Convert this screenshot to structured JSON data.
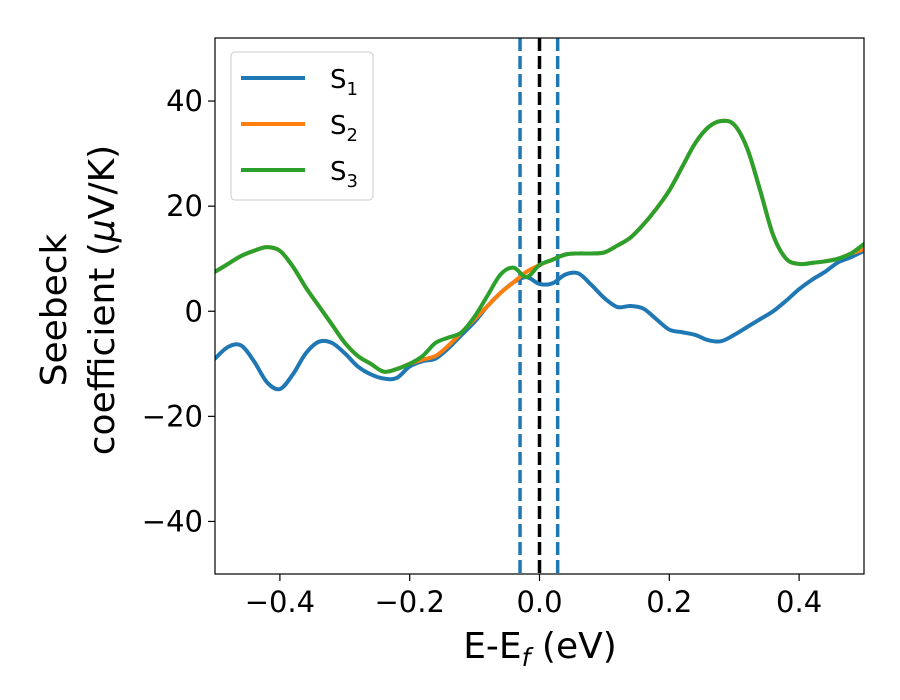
{
  "chart_data": {
    "type": "line",
    "xlabel": {
      "main": "E-E",
      "sub": "f",
      "rest": " (eV)"
    },
    "ylabel": {
      "line1": "Seebeck",
      "line2_prefix": "coefficient  (",
      "mu": "μ",
      "line2_suffix": "V/K)"
    },
    "xlim": [
      -0.5,
      0.5
    ],
    "ylim": [
      -50,
      52
    ],
    "xticks": [
      -0.4,
      -0.2,
      0.0,
      0.2,
      0.4
    ],
    "xtick_labels": [
      "−0.4",
      "−0.2",
      "0.0",
      "0.2",
      "0.4"
    ],
    "yticks": [
      -40,
      -20,
      0,
      20,
      40
    ],
    "ytick_labels": [
      "−40",
      "−20",
      "0",
      "20",
      "40"
    ],
    "grid": false,
    "legend_position": "top-left",
    "vlines": [
      {
        "x": -0.03,
        "style": "dashed",
        "color": "#1f77b4"
      },
      {
        "x": 0.0,
        "style": "dashed",
        "color": "#000000"
      },
      {
        "x": 0.028,
        "style": "dashed",
        "color": "#1f77b4"
      }
    ],
    "series": [
      {
        "name": "S",
        "sub": "1",
        "color": "#1f77b4",
        "x": [
          -0.5,
          -0.48,
          -0.46,
          -0.44,
          -0.42,
          -0.4,
          -0.38,
          -0.36,
          -0.34,
          -0.32,
          -0.3,
          -0.28,
          -0.26,
          -0.24,
          -0.22,
          -0.2,
          -0.18,
          -0.16,
          -0.14,
          -0.12,
          -0.1,
          -0.08,
          -0.06,
          -0.04,
          -0.02,
          0.0,
          0.02,
          0.04,
          0.06,
          0.08,
          0.1,
          0.12,
          0.14,
          0.16,
          0.18,
          0.2,
          0.22,
          0.24,
          0.26,
          0.28,
          0.3,
          0.32,
          0.34,
          0.36,
          0.38,
          0.4,
          0.42,
          0.44,
          0.46,
          0.48,
          0.5
        ],
        "y": [
          -9,
          -6.8,
          -6.5,
          -9.5,
          -13.5,
          -14.8,
          -12,
          -8,
          -5.8,
          -6,
          -8,
          -10.5,
          -12,
          -12.8,
          -12.7,
          -10.5,
          -9.5,
          -9,
          -7,
          -4.5,
          -2,
          1,
          3.5,
          5.5,
          6.5,
          5.2,
          5.3,
          7,
          7.2,
          5,
          2.5,
          0.8,
          1,
          0.5,
          -1.5,
          -3.5,
          -4,
          -4.5,
          -5.5,
          -5.7,
          -4.5,
          -3,
          -1.5,
          0,
          2,
          4.2,
          6,
          7.5,
          9.3,
          10.3,
          11.5
        ]
      },
      {
        "name": "S",
        "sub": "2",
        "color": "#ff7f0e",
        "x": [
          -0.5,
          -0.48,
          -0.46,
          -0.44,
          -0.42,
          -0.4,
          -0.38,
          -0.36,
          -0.34,
          -0.32,
          -0.3,
          -0.28,
          -0.26,
          -0.24,
          -0.22,
          -0.2,
          -0.18,
          -0.16,
          -0.14,
          -0.12,
          -0.1,
          -0.08,
          -0.06,
          -0.04,
          -0.02,
          0.0,
          0.02,
          0.04,
          0.06,
          0.08,
          0.1,
          0.12,
          0.14,
          0.16,
          0.18,
          0.2,
          0.22,
          0.24,
          0.26,
          0.28,
          0.3,
          0.32,
          0.34,
          0.36,
          0.38,
          0.4,
          0.42,
          0.44,
          0.46,
          0.48,
          0.5
        ],
        "y": [
          7.5,
          9,
          10.5,
          11.5,
          12.2,
          11.5,
          8.5,
          4.5,
          1,
          -2.5,
          -6,
          -8.5,
          -10,
          -11.5,
          -11,
          -10,
          -9.2,
          -8.5,
          -6.5,
          -4,
          -1.5,
          1,
          3.5,
          5.5,
          7.5,
          8.8,
          9.8,
          10.8,
          11,
          11,
          11.2,
          12.5,
          14,
          16.5,
          19.5,
          23,
          27.5,
          32,
          35,
          36.2,
          35.5,
          31,
          23,
          14.5,
          10,
          9,
          9.2,
          9.5,
          10,
          11,
          11.8
        ]
      },
      {
        "name": "S",
        "sub": "3",
        "color": "#2ca02c",
        "x": [
          -0.5,
          -0.48,
          -0.46,
          -0.44,
          -0.42,
          -0.4,
          -0.38,
          -0.36,
          -0.34,
          -0.32,
          -0.3,
          -0.28,
          -0.26,
          -0.24,
          -0.22,
          -0.2,
          -0.18,
          -0.16,
          -0.14,
          -0.12,
          -0.1,
          -0.08,
          -0.06,
          -0.04,
          -0.02,
          0.0,
          0.02,
          0.04,
          0.06,
          0.08,
          0.1,
          0.12,
          0.14,
          0.16,
          0.18,
          0.2,
          0.22,
          0.24,
          0.26,
          0.28,
          0.3,
          0.32,
          0.34,
          0.36,
          0.38,
          0.4,
          0.42,
          0.44,
          0.46,
          0.48,
          0.5
        ],
        "y": [
          7.5,
          9,
          10.5,
          11.5,
          12.2,
          11.5,
          8.5,
          4.5,
          1,
          -2.5,
          -6,
          -8.5,
          -10,
          -11.5,
          -11,
          -10,
          -8.5,
          -6,
          -5,
          -4,
          -1,
          3,
          7,
          8.3,
          6.5,
          8.8,
          9.8,
          10.8,
          11,
          11,
          11.2,
          12.5,
          14,
          16.5,
          19.5,
          23,
          27.5,
          32,
          35,
          36.2,
          35.5,
          31,
          23,
          14.5,
          10,
          9,
          9.2,
          9.5,
          10,
          11,
          12.8
        ]
      }
    ]
  }
}
